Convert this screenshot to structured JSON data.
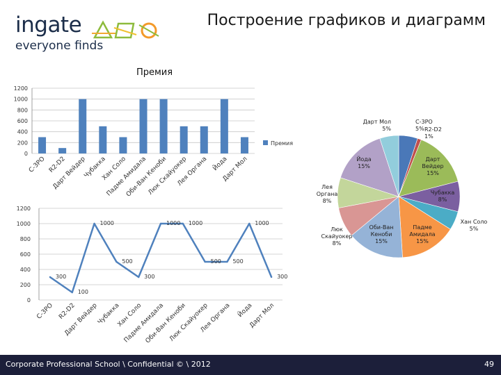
{
  "header": {
    "logo_word": "ingate",
    "logo_tagline": "everyone finds",
    "slide_title": "Построение графиков и диаграмм"
  },
  "footer": {
    "text": "Corporate Professional School \\ Confidential © \\ 2012",
    "page_number": "49"
  },
  "colors": {
    "bar": "#4f81bd",
    "line": "#4f81bd",
    "footer_bg": "#1c1f3a"
  },
  "chart_data": [
    {
      "type": "bar",
      "title": "Премия",
      "categories": [
        "С-3PO",
        "R2-D2",
        "Дарт Вейдер",
        "Чубакка",
        "Хан Соло",
        "Падме Амидала",
        "Оби-Ван Кеноби",
        "Люк Скайуокер",
        "Лея Органа",
        "Йода",
        "Дарт Мол"
      ],
      "series": [
        {
          "name": "Премия",
          "values": [
            300,
            100,
            1000,
            500,
            300,
            1000,
            1000,
            500,
            500,
            1000,
            300
          ]
        }
      ],
      "yticks": [
        "0",
        "200",
        "400",
        "600",
        "800",
        "1000",
        "1200"
      ],
      "ylim": [
        0,
        1200
      ],
      "grid": true,
      "legend": "right"
    },
    {
      "type": "line",
      "categories": [
        "С-3PO",
        "R2-D2",
        "Дарт Вейдер",
        "Чубакка",
        "Хан Соло",
        "Падме Амидала",
        "Оби-Ван Кеноби",
        "Люк Скайуокер",
        "Лея Органа",
        "Йода",
        "Дарт Мол"
      ],
      "series": [
        {
          "values": [
            300,
            100,
            1000,
            500,
            300,
            1000,
            1000,
            500,
            500,
            1000,
            300
          ]
        }
      ],
      "data_labels": [
        "300",
        "100",
        "1000",
        "500",
        "300",
        "1000",
        "1000",
        "500",
        "500",
        "1000",
        "300"
      ],
      "yticks": [
        "0",
        "200",
        "400",
        "600",
        "800",
        "1000",
        "1200"
      ],
      "ylim": [
        0,
        1200
      ],
      "grid": true
    },
    {
      "type": "pie",
      "slices": [
        {
          "label": "Дарт Мол",
          "pct": "5%",
          "value": 5,
          "color": "#4a78b8"
        },
        {
          "label": "R2-D2",
          "pct": "1%",
          "value": 1,
          "color": "#c0504d"
        },
        {
          "label": "Дарт Вейдер",
          "pct": "15%",
          "value": 15,
          "color": "#9bbb59"
        },
        {
          "label": "Чубакка",
          "pct": "8%",
          "value": 8,
          "color": "#7b5fa0"
        },
        {
          "label": "Хан Соло",
          "pct": "5%",
          "value": 5,
          "color": "#4bacc6"
        },
        {
          "label": "Падме Амидала",
          "pct": "15%",
          "value": 15,
          "color": "#f79646"
        },
        {
          "label": "Оби-Ван Кеноби",
          "pct": "15%",
          "value": 15,
          "color": "#95b3d7"
        },
        {
          "label": "Люк Скайуокер",
          "pct": "8%",
          "value": 8,
          "color": "#d99694"
        },
        {
          "label": "Лея Органа",
          "pct": "8%",
          "value": 8,
          "color": "#c3d69b"
        },
        {
          "label": "Йода",
          "pct": "15%",
          "value": 15,
          "color": "#b2a1c7"
        },
        {
          "label": "С-3PO",
          "pct": "5%",
          "value": 5,
          "color": "#92cddc"
        }
      ]
    }
  ]
}
